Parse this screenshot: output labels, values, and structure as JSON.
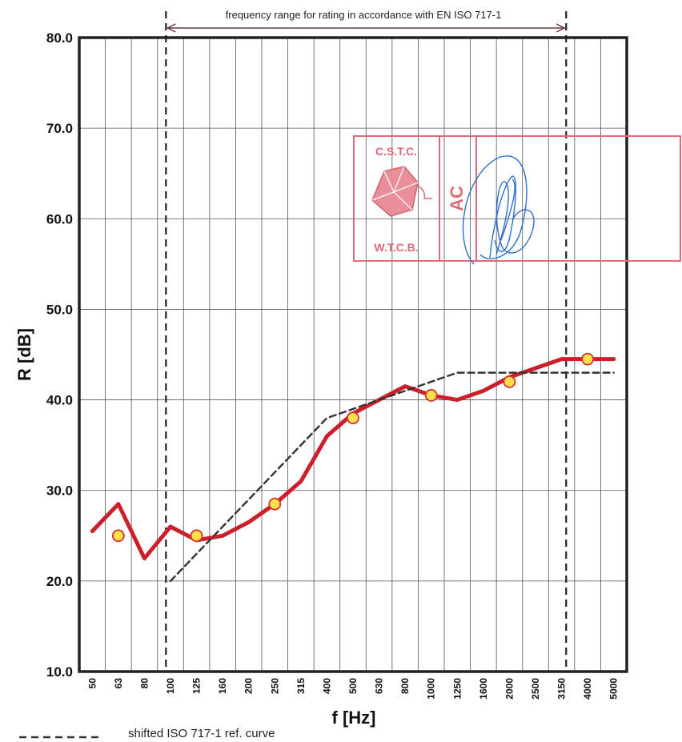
{
  "chart_data": {
    "type": "line",
    "title": "",
    "xlabel": "f [Hz]",
    "ylabel": "R [dB]",
    "ylim": [
      10,
      80
    ],
    "yticks": [
      "10.0",
      "20.0",
      "30.0",
      "40.0",
      "50.0",
      "60.0",
      "70.0",
      "80.0"
    ],
    "categories": [
      "50",
      "63",
      "80",
      "100",
      "125",
      "160",
      "200",
      "250",
      "315",
      "400",
      "500",
      "630",
      "800",
      "1000",
      "1250",
      "1600",
      "2000",
      "2500",
      "3150",
      "4000",
      "5000"
    ],
    "grid": true,
    "series": [
      {
        "values": [
          25.5,
          28.5,
          22.5,
          26.0,
          24.5,
          25.0,
          26.5,
          28.5,
          31.0,
          36.0,
          38.5,
          40.0,
          41.5,
          40.5,
          40.0,
          41.0,
          42.5,
          43.5,
          44.5,
          44.5,
          44.5
        ],
        "color": "#cc1f2b"
      },
      {
        "name": "shifted ISO 717-1 ref. curve",
        "values": [
          null,
          null,
          null,
          20.0,
          23.0,
          26.0,
          29.0,
          32.0,
          35.0,
          38.0,
          39.0,
          40.0,
          41.0,
          42.0,
          43.0,
          43.0,
          43.0,
          43.0,
          43.0,
          43.0,
          43.0
        ],
        "color": "#333333",
        "dashed": true
      }
    ],
    "markers": {
      "categories": [
        "63",
        "125",
        "250",
        "500",
        "1000",
        "2000",
        "4000"
      ],
      "values": [
        25.0,
        25.0,
        28.5,
        38.0,
        40.5,
        42.0,
        44.5
      ],
      "fill": "#ffe04a",
      "stroke": "#d1342e"
    },
    "annotation": {
      "text": "frequency range for rating in accordance with EN ISO 717-1",
      "from": "100",
      "to": "3150"
    },
    "legend": {
      "label": "shifted ISO 717-1 ref. curve",
      "placement": "bottom-left"
    }
  },
  "stamp": {
    "top": "C.S.T.C.",
    "bottom": "W.T.C.B.",
    "initials": "AC",
    "color": "#e06a7a"
  },
  "signature": {
    "color": "#2f6fd0"
  }
}
